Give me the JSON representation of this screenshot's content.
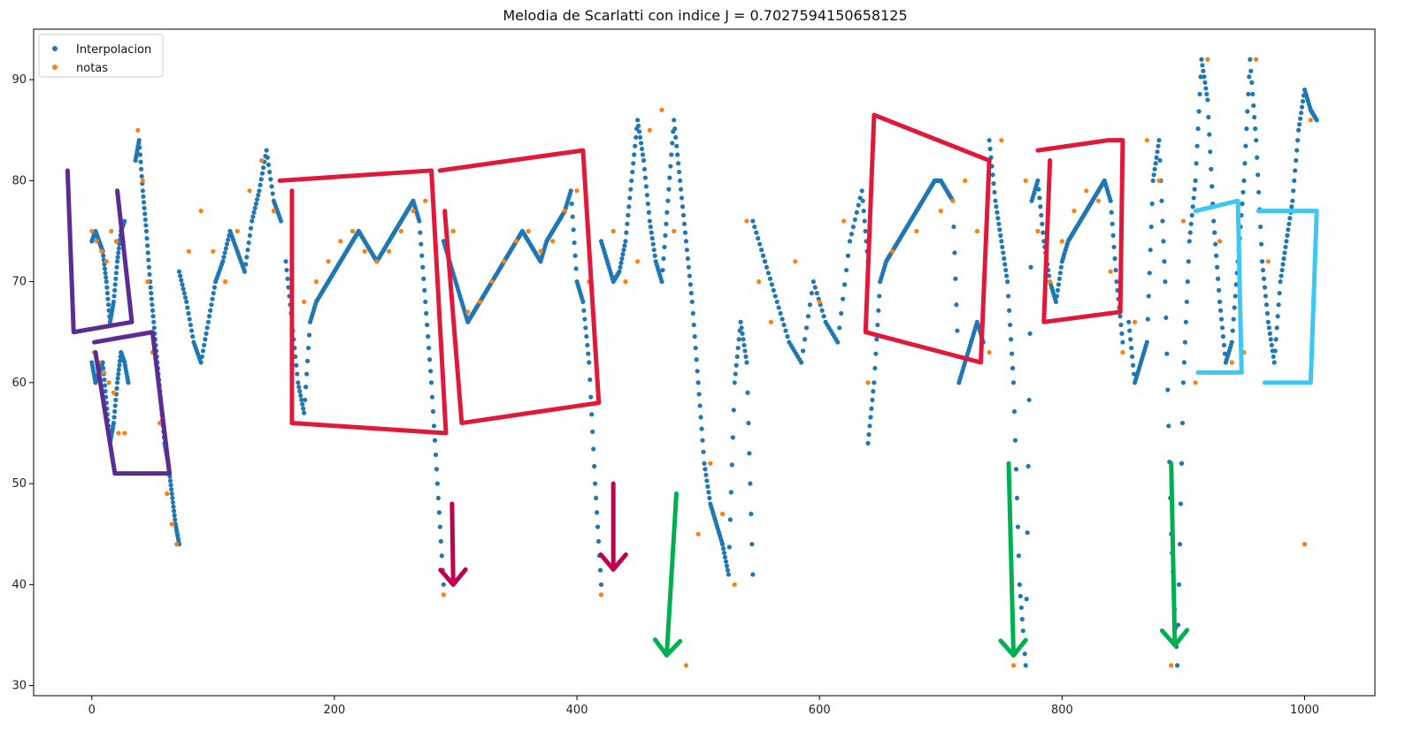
{
  "chart_data": {
    "type": "scatter",
    "title": "Melodia de Scarlatti con indice J = 0.7027594150658125",
    "xlabel": "",
    "ylabel": "",
    "xlim": [
      -48,
      1058
    ],
    "ylim": [
      29,
      95
    ],
    "x_ticks": [
      0,
      200,
      400,
      600,
      800,
      1000
    ],
    "y_ticks": [
      30,
      40,
      50,
      60,
      70,
      80,
      90
    ],
    "grid": false,
    "legend": {
      "placement": "upper-left",
      "entries": [
        "Interpolacion",
        "notas"
      ]
    },
    "series": [
      {
        "name": "Interpolacion",
        "color": "#1f77b4",
        "segments": [
          {
            "x": [
              0,
              3,
              6,
              9,
              12,
              15,
              18,
              21,
              24,
              27
            ],
            "y": [
              74,
              75,
              74,
              73,
              70,
              66,
              68,
              72,
              75,
              76
            ]
          },
          {
            "x": [
              0,
              3,
              6,
              9,
              12,
              15,
              18,
              21,
              24,
              27,
              30
            ],
            "y": [
              62,
              60,
              61,
              62,
              58,
              54,
              56,
              60,
              63,
              62,
              60
            ]
          },
          {
            "x": [
              36,
              39,
              42,
              45,
              48,
              51,
              54,
              57,
              60,
              63,
              66,
              69,
              72
            ],
            "y": [
              82,
              84,
              79,
              75,
              70,
              66,
              62,
              58,
              54,
              52,
              49,
              46,
              44
            ]
          },
          {
            "x": [
              72,
              78,
              84,
              90,
              96,
              102,
              108,
              114,
              120,
              126,
              132,
              138,
              144,
              150,
              156
            ],
            "y": [
              71,
              68,
              64,
              62,
              66,
              70,
              72,
              75,
              73,
              71,
              76,
              79,
              83,
              78,
              76
            ]
          },
          {
            "x": [
              160,
              165,
              170,
              175,
              180,
              185,
              190,
              195,
              200,
              205,
              210,
              215,
              220,
              225,
              230,
              235,
              240,
              245,
              250,
              255,
              260,
              265,
              270,
              275,
              280,
              285,
              290
            ],
            "y": [
              72,
              66,
              60,
              57,
              66,
              68,
              69,
              70,
              71,
              72,
              73,
              74,
              75,
              74,
              73,
              72,
              73,
              74,
              75,
              76,
              77,
              78,
              76,
              68,
              60,
              50,
              40
            ]
          },
          {
            "x": [
              290,
              295,
              300,
              305,
              310,
              315,
              320,
              325,
              330,
              335,
              340,
              345,
              350,
              355,
              360,
              365,
              370,
              375,
              380,
              385,
              390,
              395,
              400,
              405,
              410,
              415,
              420
            ],
            "y": [
              74,
              72,
              70,
              68,
              66,
              67,
              68,
              69,
              70,
              71,
              72,
              73,
              74,
              75,
              74,
              73,
              72,
              74,
              75,
              76,
              77,
              79,
              70,
              68,
              62,
              50,
              40
            ]
          },
          {
            "x": [
              420,
              425,
              430,
              435,
              440,
              445,
              450,
              455,
              460,
              465,
              470,
              475,
              480,
              485,
              490,
              495,
              500,
              505,
              510,
              515,
              520,
              525,
              530,
              535,
              540,
              545
            ],
            "y": [
              74,
              72,
              70,
              71,
              74,
              80,
              86,
              82,
              76,
              72,
              70,
              78,
              86,
              80,
              74,
              68,
              60,
              52,
              48,
              46,
              44,
              41,
              60,
              66,
              62,
              41
            ]
          },
          {
            "x": [
              545,
              555,
              565,
              575,
              585,
              595,
              605,
              615,
              625,
              635,
              640
            ],
            "y": [
              76,
              72,
              68,
              64,
              62,
              70,
              66,
              64,
              74,
              79,
              72
            ]
          },
          {
            "x": [
              640,
              645,
              650,
              655,
              660,
              665,
              670,
              675,
              680,
              685,
              690,
              695,
              700,
              705,
              710,
              715,
              720,
              725,
              730,
              735
            ],
            "y": [
              54,
              60,
              70,
              72,
              73,
              74,
              75,
              76,
              77,
              78,
              79,
              80,
              80,
              79,
              78,
              60,
              62,
              64,
              66,
              64
            ]
          },
          {
            "x": [
              740,
              745,
              750,
              755,
              760,
              765,
              770,
              775,
              780,
              785,
              790,
              795,
              800,
              805,
              810,
              815,
              820,
              825,
              830,
              835,
              840,
              845,
              850
            ],
            "y": [
              84,
              78,
              74,
              70,
              60,
              40,
              32,
              78,
              80,
              74,
              70,
              68,
              72,
              74,
              75,
              76,
              77,
              78,
              79,
              80,
              78,
              70,
              64
            ]
          },
          {
            "x": [
              855,
              860,
              865,
              870,
              875,
              880,
              885,
              890,
              895,
              900,
              905,
              910,
              915,
              920,
              925,
              930,
              935,
              940,
              945,
              950,
              955,
              960,
              965,
              970,
              975,
              980,
              985,
              990,
              995,
              1000,
              1005,
              1010
            ],
            "y": [
              66,
              60,
              62,
              64,
              80,
              84,
              70,
              45,
              32,
              60,
              74,
              80,
              92,
              88,
              76,
              68,
              62,
              64,
              72,
              80,
              92,
              84,
              72,
              66,
              62,
              70,
              74,
              78,
              85,
              89,
              87,
              86
            ]
          }
        ]
      },
      {
        "name": "notas",
        "color": "#ff7f0e",
        "points": {
          "x": [
            0,
            4,
            8,
            12,
            16,
            20,
            2,
            6,
            10,
            14,
            18,
            22,
            27,
            38,
            42,
            46,
            50,
            56,
            62,
            66,
            70,
            80,
            90,
            100,
            110,
            120,
            130,
            140,
            150,
            165,
            175,
            185,
            195,
            205,
            215,
            225,
            235,
            245,
            255,
            265,
            275,
            285,
            290,
            298,
            310,
            320,
            330,
            340,
            350,
            360,
            370,
            380,
            390,
            400,
            410,
            420,
            430,
            440,
            450,
            460,
            470,
            480,
            490,
            500,
            510,
            520,
            530,
            540,
            550,
            560,
            580,
            600,
            620,
            640,
            660,
            680,
            700,
            710,
            720,
            730,
            740,
            750,
            760,
            770,
            780,
            790,
            800,
            810,
            820,
            830,
            840,
            850,
            860,
            870,
            880,
            890,
            900,
            910,
            920,
            930,
            940,
            950,
            960,
            970,
            980,
            990,
            1000,
            1005
          ],
          "y": [
            75,
            74,
            73,
            72,
            75,
            74,
            63,
            62,
            61,
            60,
            59,
            55,
            55,
            85,
            80,
            70,
            63,
            56,
            49,
            46,
            44,
            73,
            77,
            73,
            70,
            75,
            79,
            82,
            77,
            67,
            68,
            70,
            72,
            74,
            75,
            73,
            72,
            73,
            75,
            77,
            78,
            70,
            39,
            75,
            67,
            68,
            70,
            72,
            74,
            75,
            73,
            74,
            77,
            79,
            70,
            39,
            75,
            70,
            72,
            85,
            87,
            75,
            32,
            45,
            52,
            47,
            40,
            76,
            70,
            66,
            72,
            68,
            76,
            60,
            73,
            75,
            77,
            78,
            80,
            75,
            63,
            84,
            32,
            80,
            75,
            70,
            74,
            77,
            79,
            78,
            71,
            63,
            66,
            84,
            80,
            32,
            76,
            60,
            92,
            74,
            62,
            63,
            92,
            72,
            60,
            77,
            44,
            86
          ]
        }
      }
    ],
    "annotations": [
      {
        "kind": "freehand-box",
        "color": "#5b2c91",
        "points": [
          [
            -20,
            81
          ],
          [
            -15,
            65
          ],
          [
            33,
            66
          ],
          [
            21,
            79
          ]
        ]
      },
      {
        "kind": "freehand-box",
        "color": "#5b2c91",
        "points": [
          [
            2,
            64
          ],
          [
            50,
            65
          ],
          [
            64,
            51
          ],
          [
            19,
            51
          ],
          [
            3,
            63
          ]
        ]
      },
      {
        "kind": "freehand-box",
        "color": "#e0193a",
        "points": [
          [
            155,
            80
          ],
          [
            280,
            81
          ],
          [
            292,
            55
          ],
          [
            165,
            56
          ],
          [
            165,
            79
          ]
        ]
      },
      {
        "kind": "freehand-box",
        "color": "#e0193a",
        "points": [
          [
            287,
            81
          ],
          [
            405,
            83
          ],
          [
            418,
            58
          ],
          [
            305,
            56
          ],
          [
            291,
            77
          ]
        ]
      },
      {
        "kind": "freehand-box",
        "color": "#e0193a",
        "points": [
          [
            645,
            86.5
          ],
          [
            740,
            82
          ],
          [
            733,
            62
          ],
          [
            638,
            65
          ],
          [
            645,
            86.5
          ]
        ]
      },
      {
        "kind": "freehand-box",
        "color": "#e0193a",
        "points": [
          [
            780,
            83
          ],
          [
            838,
            84
          ],
          [
            850,
            84
          ],
          [
            848,
            67
          ],
          [
            785,
            66
          ],
          [
            790,
            82
          ]
        ]
      },
      {
        "kind": "freehand-box",
        "color": "#3cc8f2",
        "points": [
          [
            910,
            77
          ],
          [
            945,
            78
          ],
          [
            948,
            61
          ],
          [
            912,
            61
          ]
        ]
      },
      {
        "kind": "freehand-box",
        "color": "#3cc8f2",
        "points": [
          [
            962,
            77
          ],
          [
            1010,
            77
          ],
          [
            1005,
            60
          ],
          [
            967,
            60
          ]
        ]
      },
      {
        "kind": "arrow",
        "color": "#c2004f",
        "from": [
          297,
          48
        ],
        "to": [
          298,
          40
        ]
      },
      {
        "kind": "arrow",
        "color": "#c2004f",
        "from": [
          430,
          50
        ],
        "to": [
          430,
          41.5
        ]
      },
      {
        "kind": "arrow",
        "color": "#00b050",
        "from": [
          482,
          49
        ],
        "to": [
          474,
          33
        ]
      },
      {
        "kind": "arrow",
        "color": "#00b050",
        "from": [
          756,
          52
        ],
        "to": [
          760,
          33
        ]
      },
      {
        "kind": "arrow",
        "color": "#00b050",
        "from": [
          890,
          52
        ],
        "to": [
          893,
          34
        ]
      }
    ]
  }
}
